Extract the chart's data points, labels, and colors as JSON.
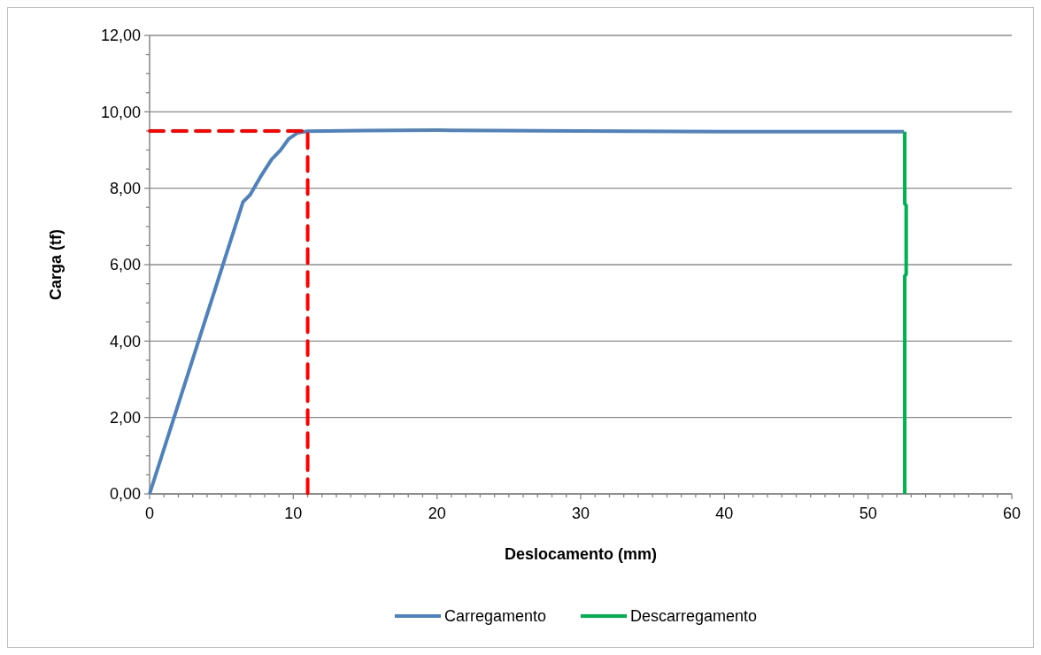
{
  "chart_data": {
    "type": "line",
    "xlabel": "Deslocamento (mm)",
    "ylabel": "Carga (tf)",
    "xlim": [
      0,
      60
    ],
    "xticks": [
      0,
      {
        "value": 1,
        "label": null
      },
      {
        "value": 2,
        "label": null
      },
      {
        "value": 3,
        "label": null
      },
      {
        "value": 4,
        "label": null
      },
      {
        "value": 5,
        "label": null
      },
      {
        "value": 6,
        "label": null
      },
      {
        "value": 7,
        "label": null
      },
      {
        "value": 8,
        "label": null
      },
      {
        "value": 9,
        "label": null
      },
      10,
      {
        "value": 11,
        "label": null
      },
      {
        "value": 12,
        "label": null
      },
      {
        "value": 13,
        "label": null
      },
      {
        "value": 14,
        "label": null
      },
      {
        "value": 15,
        "label": null
      },
      {
        "value": 16,
        "label": null
      },
      {
        "value": 17,
        "label": null
      },
      {
        "value": 18,
        "label": null
      },
      {
        "value": 19,
        "label": null
      },
      20,
      {
        "value": 21,
        "label": null
      },
      {
        "value": 22,
        "label": null
      },
      {
        "value": 23,
        "label": null
      },
      {
        "value": 24,
        "label": null
      },
      {
        "value": 25,
        "label": null
      },
      {
        "value": 26,
        "label": null
      },
      {
        "value": 27,
        "label": null
      },
      {
        "value": 28,
        "label": null
      },
      {
        "value": 29,
        "label": null
      },
      30,
      {
        "value": 31,
        "label": null
      },
      {
        "value": 32,
        "label": null
      },
      {
        "value": 33,
        "label": null
      },
      {
        "value": 34,
        "label": null
      },
      {
        "value": 35,
        "label": null
      },
      {
        "value": 36,
        "label": null
      },
      {
        "value": 37,
        "label": null
      },
      {
        "value": 38,
        "label": null
      },
      {
        "value": 39,
        "label": null
      },
      40,
      {
        "value": 41,
        "label": null
      },
      {
        "value": 42,
        "label": null
      },
      {
        "value": 43,
        "label": null
      },
      {
        "value": 44,
        "label": null
      },
      {
        "value": 45,
        "label": null
      },
      {
        "value": 46,
        "label": null
      },
      {
        "value": 47,
        "label": null
      },
      {
        "value": 48,
        "label": null
      },
      {
        "value": 49,
        "label": null
      },
      50,
      {
        "value": 51,
        "label": null
      },
      {
        "value": 52,
        "label": null
      },
      {
        "value": 53,
        "label": null
      },
      {
        "value": 54,
        "label": null
      },
      {
        "value": 55,
        "label": null
      },
      {
        "value": 56,
        "label": null
      },
      {
        "value": 57,
        "label": null
      },
      {
        "value": 58,
        "label": null
      },
      {
        "value": 59,
        "label": null
      },
      60
    ],
    "ylim": [
      0,
      12
    ],
    "yticks": [
      {
        "value": 0,
        "label": "0,00"
      },
      {
        "value": 0.5,
        "label": null
      },
      {
        "value": 1,
        "label": null
      },
      {
        "value": 1.5,
        "label": null
      },
      {
        "value": 2,
        "label": "2,00"
      },
      {
        "value": 2.5,
        "label": null
      },
      {
        "value": 3,
        "label": null
      },
      {
        "value": 3.5,
        "label": null
      },
      {
        "value": 4,
        "label": "4,00"
      },
      {
        "value": 4.5,
        "label": null
      },
      {
        "value": 5,
        "label": null
      },
      {
        "value": 5.5,
        "label": null
      },
      {
        "value": 6,
        "label": "6,00"
      },
      {
        "value": 6.5,
        "label": null
      },
      {
        "value": 7,
        "label": null
      },
      {
        "value": 7.5,
        "label": null
      },
      {
        "value": 8,
        "label": "8,00"
      },
      {
        "value": 8.5,
        "label": null
      },
      {
        "value": 9,
        "label": null
      },
      {
        "value": 9.5,
        "label": null
      },
      {
        "value": 10,
        "label": "10,00"
      },
      {
        "value": 10.5,
        "label": null
      },
      {
        "value": 11,
        "label": null
      },
      {
        "value": 11.5,
        "label": null
      },
      {
        "value": 12,
        "label": "12,00"
      }
    ],
    "grid": "y",
    "legend": "bottom",
    "series": [
      {
        "name": "Carregamento",
        "color": "#4f81bd",
        "line_style": "solid",
        "x": [
          0,
          6.5,
          7.0,
          7.7,
          8.5,
          9.1,
          9.7,
          10.3,
          11.0,
          15,
          20,
          30,
          40,
          52.5
        ],
        "values": [
          0,
          7.64,
          7.83,
          8.29,
          8.76,
          8.99,
          9.3,
          9.45,
          9.49,
          9.51,
          9.52,
          9.5,
          9.48,
          9.48
        ]
      },
      {
        "name": "Descarregamento",
        "color": "#00b050",
        "line_style": "solid",
        "x": [
          52.55,
          52.55,
          52.65,
          52.65,
          52.55,
          52.55
        ],
        "values": [
          9.48,
          7.6,
          7.55,
          5.75,
          5.7,
          0
        ]
      },
      {
        "color": "#ff0000",
        "line_style": "dashed",
        "x": [
          0,
          11,
          11
        ],
        "values": [
          9.5,
          9.5,
          0
        ]
      }
    ]
  }
}
